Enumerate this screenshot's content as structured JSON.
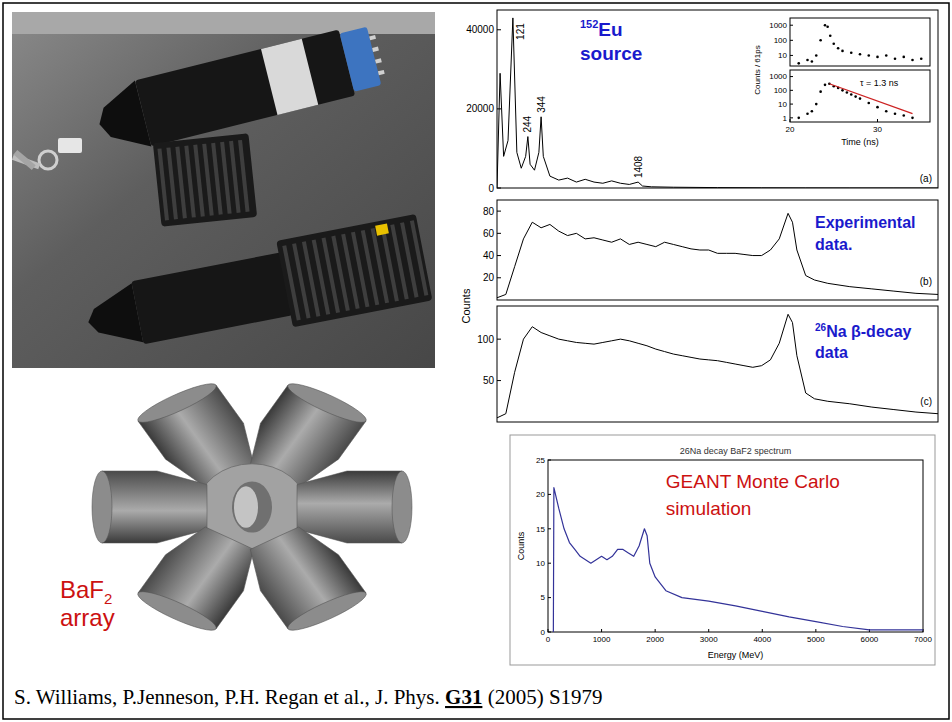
{
  "chart_data": [
    {
      "type": "line",
      "label": "(a)",
      "title": [
        [
          {
            "text": "152",
            "sup": true
          },
          {
            "text": "Eu"
          }
        ],
        [
          {
            "text": "source"
          }
        ]
      ],
      "xlim": [
        0,
        100
      ],
      "ylim": [
        0,
        45000
      ],
      "yticks": [
        0,
        20000,
        40000
      ],
      "tick_labels": "y",
      "annotations": [
        {
          "text": "121",
          "x": 3.6,
          "y": 43000
        },
        {
          "text": "244",
          "x": 7,
          "y": 13000
        },
        {
          "text": "344",
          "x": 10,
          "y": 18000
        },
        {
          "text": "1408",
          "x": 32,
          "y": 1500
        }
      ],
      "series": [
        {
          "color": "#000000",
          "x": [
            0,
            0.7,
            1.5,
            2.5,
            3.6,
            4.5,
            5.5,
            6.5,
            7,
            7.5,
            8.5,
            9.5,
            10,
            10.5,
            12,
            14,
            16,
            18,
            20,
            22,
            24,
            26,
            28,
            30,
            32,
            33,
            35,
            40,
            50,
            60,
            70,
            80,
            90,
            100
          ],
          "values": [
            0,
            29000,
            8000,
            12000,
            43000,
            9000,
            5000,
            8000,
            13000,
            6000,
            4500,
            9000,
            18000,
            8000,
            3000,
            2000,
            2500,
            1500,
            2200,
            1500,
            1200,
            1800,
            1200,
            900,
            1500,
            500,
            300,
            200,
            100,
            50,
            20,
            10,
            5,
            0
          ]
        }
      ]
    },
    {
      "type": "scatter",
      "marker": "dot",
      "ylabel": "Counts / 61ps",
      "log": "y",
      "xlim": [
        20,
        36
      ],
      "ylim": [
        2,
        3000
      ],
      "yticks": [
        10,
        100,
        1000
      ],
      "tick_labels": "y",
      "series": [
        {
          "color": "#000000",
          "x": [
            21,
            22,
            22.5,
            23,
            23.5,
            24,
            24.3,
            24.6,
            25,
            25.5,
            26,
            27,
            28,
            29,
            30,
            31,
            32,
            33,
            34,
            35
          ],
          "values": [
            3,
            5,
            4,
            10,
            100,
            1000,
            800,
            200,
            60,
            30,
            20,
            15,
            12,
            10,
            8,
            10,
            6,
            8,
            5,
            6
          ]
        }
      ]
    },
    {
      "type": "scatter",
      "marker": "dot",
      "xlabel": "Time (ns)",
      "log": "y",
      "xlim": [
        20,
        36
      ],
      "ylim": [
        0.5,
        3000
      ],
      "xticks": [
        20,
        30
      ],
      "yticks": [
        1,
        10,
        100,
        1000
      ],
      "annotations": [
        {
          "text": "τ = 1.3 ns",
          "x": 28,
          "y": 200
        }
      ],
      "series": [
        {
          "color": "#000000",
          "x": [
            21,
            22,
            22.5,
            23,
            23.5,
            24,
            24.5,
            25,
            25.5,
            26,
            26.5,
            27,
            27.5,
            28,
            29,
            30,
            31,
            32,
            33,
            34
          ],
          "values": [
            1,
            2,
            3,
            10,
            80,
            250,
            300,
            200,
            150,
            100,
            70,
            50,
            35,
            25,
            12,
            6,
            3,
            2,
            1.5,
            1
          ]
        },
        {
          "type": "line",
          "color": "#cc2222",
          "x": [
            24.5,
            34
          ],
          "values": [
            300,
            2
          ]
        }
      ]
    },
    {
      "type": "line",
      "label": "(b)",
      "ylabel": "Counts",
      "title": [
        [
          {
            "text": "Experimental"
          }
        ],
        [
          {
            "text": "data."
          }
        ]
      ],
      "xlim": [
        0,
        100
      ],
      "ylim": [
        0,
        90
      ],
      "yticks": [
        20,
        40,
        60,
        80
      ],
      "tick_labels": "y",
      "series": [
        {
          "color": "#000000",
          "x": [
            0,
            2,
            4,
            6,
            8,
            10,
            12,
            14,
            16,
            18,
            20,
            22,
            24,
            26,
            28,
            30,
            32,
            34,
            36,
            38,
            40,
            42,
            44,
            46,
            48,
            50,
            52,
            54,
            56,
            58,
            60,
            62,
            64,
            66,
            67,
            68,
            70,
            72,
            75,
            80,
            85,
            90,
            95,
            100
          ],
          "values": [
            2,
            5,
            30,
            55,
            70,
            65,
            68,
            62,
            58,
            60,
            55,
            56,
            54,
            52,
            55,
            50,
            52,
            50,
            48,
            52,
            50,
            48,
            46,
            45,
            45,
            42,
            42,
            42,
            41,
            40,
            40,
            45,
            55,
            78,
            70,
            45,
            22,
            18,
            15,
            12,
            10,
            8,
            6,
            5
          ]
        }
      ]
    },
    {
      "type": "line",
      "label": "(c)",
      "title": [
        [
          {
            "text": "26",
            "sup": true
          },
          {
            "text": "Na β-decay"
          }
        ],
        [
          {
            "text": "data"
          }
        ]
      ],
      "xlim": [
        0,
        100
      ],
      "ylim": [
        0,
        140
      ],
      "yticks": [
        50,
        100
      ],
      "tick_labels": "y",
      "series": [
        {
          "color": "#000000",
          "x": [
            0,
            2,
            4,
            6,
            8,
            10,
            12,
            14,
            16,
            18,
            20,
            22,
            24,
            26,
            28,
            30,
            32,
            34,
            36,
            38,
            40,
            42,
            44,
            46,
            48,
            50,
            52,
            54,
            56,
            58,
            60,
            62,
            64,
            66,
            67,
            68,
            70,
            72,
            75,
            80,
            85,
            90,
            95,
            100
          ],
          "values": [
            5,
            10,
            60,
            100,
            115,
            108,
            104,
            100,
            98,
            96,
            95,
            94,
            96,
            98,
            100,
            98,
            95,
            92,
            88,
            85,
            82,
            80,
            78,
            76,
            75,
            74,
            72,
            70,
            68,
            66,
            68,
            75,
            95,
            130,
            120,
            80,
            35,
            28,
            25,
            22,
            18,
            15,
            12,
            10
          ]
        }
      ]
    },
    {
      "type": "line",
      "title": [
        [
          {
            "text": "26Na decay BaF2 spectrum"
          }
        ]
      ],
      "xlabel": "Energy (MeV)",
      "ylabel": "Counts",
      "xlim": [
        0,
        7000
      ],
      "ylim": [
        0,
        25
      ],
      "xticks": [
        0,
        1000,
        2000,
        3000,
        4000,
        5000,
        6000,
        7000
      ],
      "yticks": [
        0,
        5,
        10,
        15,
        20,
        25
      ],
      "annotations": [
        {
          "text": "GEANT Monte Carlo",
          "x": 2200,
          "y": 21
        },
        {
          "text": "simulation",
          "x": 2200,
          "y": 17
        }
      ],
      "series": [
        {
          "color": "#333399",
          "x": [
            100,
            110,
            200,
            300,
            400,
            500,
            600,
            700,
            800,
            900,
            1000,
            1100,
            1200,
            1300,
            1400,
            1500,
            1600,
            1700,
            1800,
            1850,
            1900,
            2000,
            2200,
            2500,
            3000,
            3500,
            4000,
            4500,
            5000,
            5500,
            6000,
            7000
          ],
          "values": [
            0,
            21,
            18,
            15,
            13,
            12,
            11,
            10.5,
            10,
            10.5,
            11,
            10.5,
            11,
            12,
            12,
            11.5,
            11,
            12.5,
            15,
            14,
            10,
            8,
            6,
            5,
            4.5,
            3.8,
            3,
            2.2,
            1.5,
            0.8,
            0.3,
            0.3
          ]
        }
      ]
    }
  ],
  "array": {
    "name": "BaF",
    "subscript": "2",
    "caption": "array"
  },
  "citation": {
    "text": "S. Williams, P.Jenneson, P.H. Regan et al., J. Phys. ",
    "volume": "G31",
    "rest": " (2005) S1979"
  }
}
